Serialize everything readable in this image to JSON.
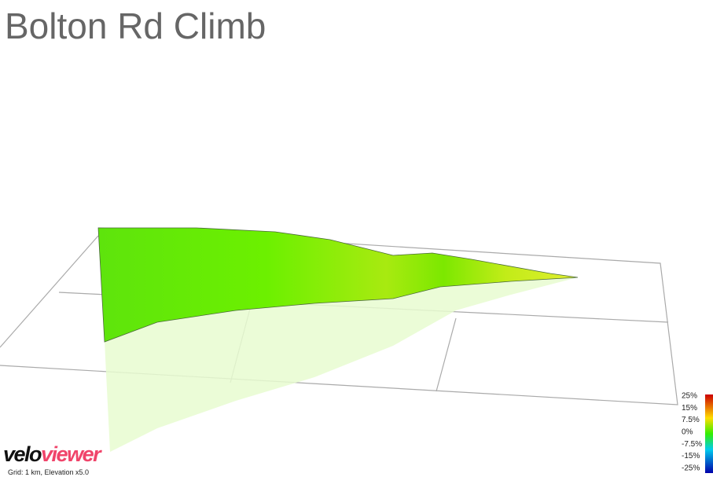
{
  "header": {
    "title": "Bolton Rd Climb"
  },
  "legend": {
    "labels": [
      "25%",
      "15%",
      "7.5%",
      "0%",
      "-7.5%",
      "-15%",
      "-25%"
    ]
  },
  "logo": {
    "parts": [
      "velo",
      "viewer"
    ]
  },
  "footer": {
    "caption": "Grid: 1 km, Elevation x5.0"
  }
}
